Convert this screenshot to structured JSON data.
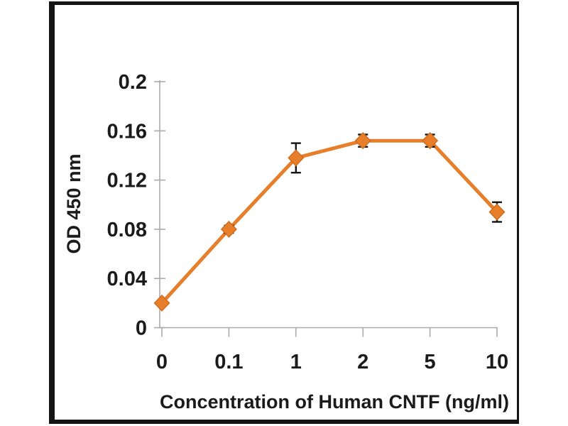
{
  "window": {
    "background": "#ffffff",
    "frame_border_color": "#141414"
  },
  "chart_data": {
    "type": "line",
    "title": "",
    "xlabel": "Concentration of Human CNTF (ng/ml)",
    "ylabel": "OD 450 nm",
    "x_scale": "categorical",
    "categories": [
      "0",
      "0.1",
      "1",
      "2",
      "5",
      "10"
    ],
    "y_ticks": [
      0,
      0.04,
      0.08,
      0.12,
      0.16,
      0.2
    ],
    "y_tick_labels": [
      "0",
      "0.04",
      "0.08",
      "0.12",
      "0.16",
      "0.2"
    ],
    "ylim": [
      0,
      0.2
    ],
    "grid": false,
    "legend": "none",
    "axis_color": "#ababab",
    "text_color": "#1b1b1b",
    "series": [
      {
        "name": "OD 450 nm",
        "marker": "diamond",
        "color": "#e67e2a",
        "marker_edge_color": "#cf6e1f",
        "error_bar_color": "#141414",
        "values": [
          0.02,
          0.08,
          0.138,
          0.152,
          0.152,
          0.094
        ],
        "errors": [
          0.002,
          0.003,
          0.012,
          0.005,
          0.005,
          0.008
        ]
      }
    ]
  }
}
